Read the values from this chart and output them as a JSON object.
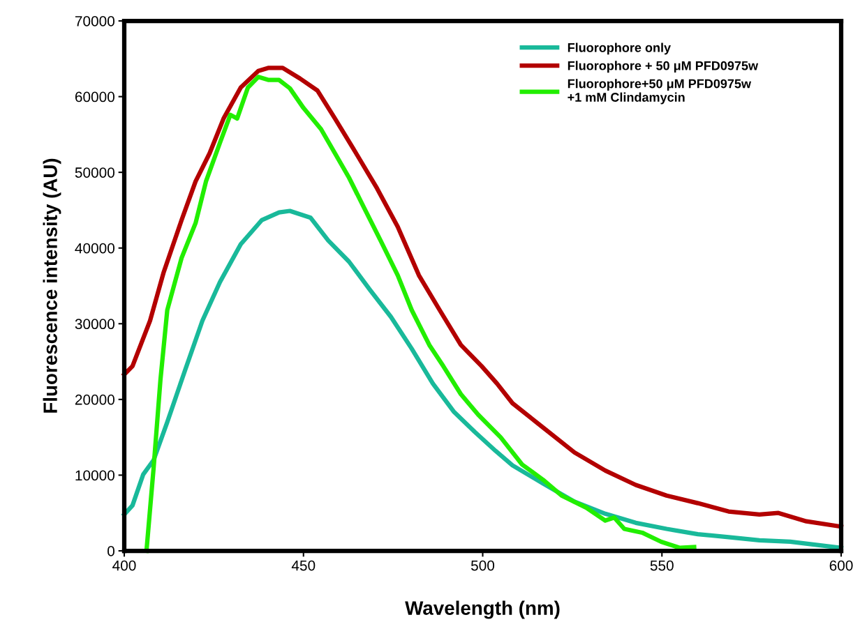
{
  "chart_data": {
    "type": "line",
    "xlabel": "Wavelength (nm)",
    "ylabel": "Fluorescence intensity (AU)",
    "xlim": [
      400,
      600
    ],
    "xticks": [
      400,
      450,
      500,
      550,
      600
    ],
    "ylim": [
      0,
      70000
    ],
    "yticks": [
      0,
      10000,
      20000,
      30000,
      40000,
      50000,
      60000,
      70000
    ],
    "grid": false,
    "legend": "top right",
    "marker": "none",
    "line_style": "solid",
    "series": [
      {
        "name": "Fluorophore only",
        "color": "#19b99a",
        "x": [
          400,
          402.3,
          405.3,
          408.2,
          412,
          417,
          421.8,
          426.7,
          432.5,
          438.4,
          443.2,
          446.2,
          452,
          456.9,
          462.7,
          468.5,
          474.4,
          480.2,
          486.1,
          491.9,
          497.8,
          503.6,
          508.3,
          516.8,
          525.6,
          534.2,
          542.7,
          551.3,
          560,
          568.6,
          577.2,
          585.8,
          600
        ],
        "values": [
          4800,
          6000,
          10100,
          12000,
          17000,
          23900,
          30400,
          35500,
          40500,
          43700,
          44700,
          44900,
          44000,
          41000,
          38200,
          34500,
          30900,
          26700,
          22100,
          18400,
          15700,
          13200,
          11300,
          8900,
          6500,
          4900,
          3700,
          2900,
          2200,
          1800,
          1400,
          1200,
          400
        ]
      },
      {
        "name": "Fluorophore + 50 μM PFD0975w",
        "color": "#b30000",
        "x": [
          400,
          402.3,
          407.2,
          411,
          416,
          419.9,
          423.8,
          427.7,
          432.5,
          437.4,
          440.3,
          444.2,
          449,
          453.9,
          458.8,
          464.7,
          470.5,
          476.3,
          482.2,
          488,
          493.9,
          499.7,
          504,
          508.3,
          516.8,
          525.6,
          534.2,
          542.7,
          551.3,
          560,
          568.6,
          577.2,
          582.5,
          590.3,
          600
        ],
        "values": [
          23300,
          24400,
          30400,
          36800,
          43700,
          48800,
          52500,
          57100,
          61200,
          63400,
          63800,
          63800,
          62400,
          60800,
          57100,
          52500,
          47900,
          42800,
          36400,
          31800,
          27200,
          24400,
          22100,
          19500,
          16300,
          13000,
          10600,
          8700,
          7300,
          6300,
          5200,
          4800,
          5000,
          3900,
          3200
        ]
      },
      {
        "name": "Fluorophore+50 μM PFD0975w\n+1 mM Clindamycin",
        "color": "#22ee00",
        "x": [
          406.2,
          408.2,
          410.1,
          412,
          416,
          419.9,
          422.8,
          426.7,
          429.6,
          431.5,
          434.5,
          437.4,
          440.3,
          443.2,
          446.2,
          450,
          454.9,
          458.8,
          462.7,
          466.6,
          471.5,
          476.3,
          480.2,
          485.1,
          489,
          493.9,
          498.7,
          505,
          511,
          516.8,
          522,
          528.9,
          534.2,
          536.7,
          539.5,
          544.5,
          549.8,
          555,
          559
        ],
        "values": [
          0,
          11000,
          22600,
          31800,
          38700,
          43300,
          48800,
          53900,
          57600,
          57100,
          61200,
          62600,
          62200,
          62200,
          61100,
          58500,
          55700,
          52500,
          49300,
          45600,
          41000,
          36400,
          31800,
          27200,
          24400,
          20700,
          18000,
          15000,
          11400,
          9400,
          7300,
          5700,
          4000,
          4400,
          2900,
          2400,
          1200,
          400,
          500
        ]
      }
    ]
  }
}
